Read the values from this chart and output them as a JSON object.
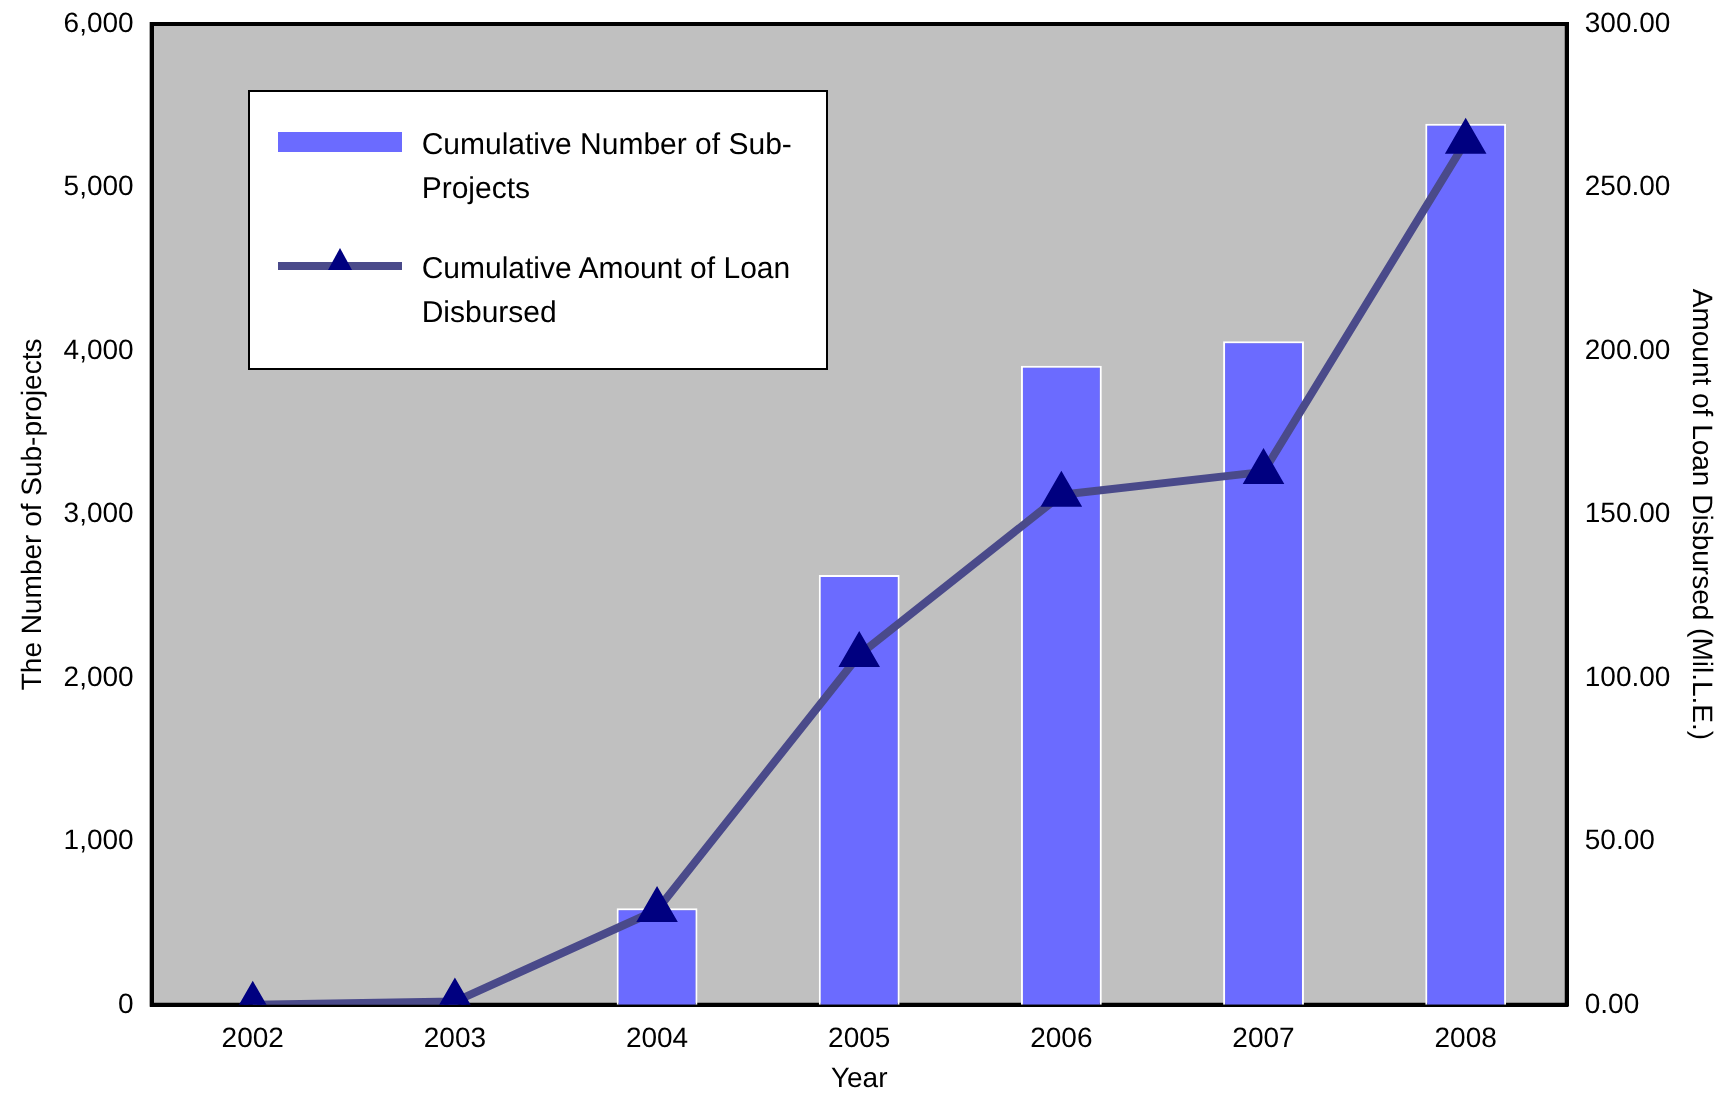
{
  "chart_data": {
    "type": "bar",
    "xlabel": "Year",
    "ylabel": "The Number of Sub-projects",
    "y2label": "Amount of Loan Disbursed (Mil.L.E.)",
    "categories": [
      "2002",
      "2003",
      "2004",
      "2005",
      "2006",
      "2007",
      "2008"
    ],
    "series": [
      {
        "name": "Cumulative Number of Sub-Projects",
        "color": "#6b6bff",
        "values": [
          0,
          0,
          590,
          2630,
          3910,
          4060,
          5390
        ]
      },
      {
        "name": "Cumulative Amount of Loan Disbursed",
        "type": "line",
        "axis": "y2",
        "color": "#4a4a8a",
        "marker": "triangle",
        "values": [
          0,
          1,
          29,
          107,
          156,
          163,
          264
        ]
      }
    ],
    "ylim": [
      0,
      6000
    ],
    "yticks": [
      {
        "value": 0,
        "label": "0"
      },
      {
        "value": 1000,
        "label": "1,000"
      },
      {
        "value": 2000,
        "label": "2,000"
      },
      {
        "value": 3000,
        "label": "3,000"
      },
      {
        "value": 4000,
        "label": "4,000"
      },
      {
        "value": 5000,
        "label": "5,000"
      },
      {
        "value": 6000,
        "label": "6,000"
      }
    ],
    "y2lim": [
      0,
      300
    ],
    "y2ticks": [
      {
        "value": 0,
        "label": "0.00"
      },
      {
        "value": 50,
        "label": "50.00"
      },
      {
        "value": 100,
        "label": "100.00"
      },
      {
        "value": 150,
        "label": "150.00"
      },
      {
        "value": 200,
        "label": "200.00"
      },
      {
        "value": 250,
        "label": "250.00"
      },
      {
        "value": 300,
        "label": "300.00"
      }
    ],
    "grid": false,
    "legend": "top left"
  }
}
